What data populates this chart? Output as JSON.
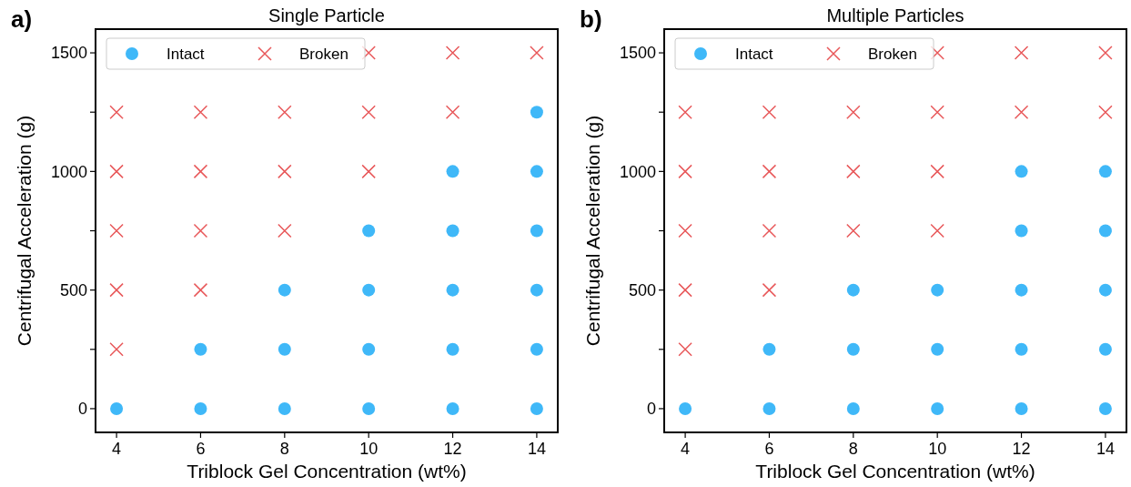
{
  "chart_data": [
    {
      "type": "scatter",
      "title": "Single Particle",
      "xlabel": "Triblock Gel Concentration (wt%)",
      "ylabel": "Centrifugal Acceleration (g)",
      "annotations": [
        "a)"
      ],
      "xlim": [
        3.5,
        14.5
      ],
      "xticks": [
        4,
        6,
        8,
        10,
        12,
        14
      ],
      "ylim": [
        -100,
        1600
      ],
      "yticks": [
        0,
        {
          "value": 250,
          "label": null
        },
        500,
        {
          "value": 750,
          "label": null
        },
        1000,
        {
          "value": 1250,
          "label": null
        },
        1500
      ],
      "legend": "top left",
      "grid": false,
      "series": [
        {
          "name": "Intact",
          "color": "#3fb8f8",
          "marker": "circle",
          "x": [
            4,
            6,
            6,
            8,
            8,
            8,
            10,
            10,
            10,
            10,
            12,
            12,
            12,
            12,
            12,
            14,
            14,
            14,
            14,
            14,
            14
          ],
          "values": [
            0,
            0,
            250,
            0,
            250,
            500,
            0,
            250,
            500,
            750,
            0,
            250,
            500,
            750,
            1000,
            0,
            250,
            500,
            750,
            1000,
            1250
          ]
        },
        {
          "name": "Broken",
          "color": "#e8585a",
          "marker": "cross",
          "x": [
            4,
            4,
            4,
            4,
            4,
            6,
            6,
            6,
            6,
            8,
            8,
            8,
            10,
            10,
            10,
            12,
            12,
            14
          ],
          "values": [
            250,
            500,
            750,
            1000,
            1250,
            500,
            750,
            1000,
            1250,
            750,
            1000,
            1250,
            1000,
            1250,
            1500,
            1250,
            1500,
            1500
          ]
        }
      ]
    },
    {
      "type": "scatter",
      "title": "Multiple Particles",
      "xlabel": "Triblock Gel Concentration (wt%)",
      "ylabel": "Centrifugal Acceleration (g)",
      "annotations": [
        "b)"
      ],
      "xlim": [
        3.5,
        14.5
      ],
      "xticks": [
        4,
        6,
        8,
        10,
        12,
        14
      ],
      "ylim": [
        -100,
        1600
      ],
      "yticks": [
        0,
        {
          "value": 250,
          "label": null
        },
        500,
        {
          "value": 750,
          "label": null
        },
        1000,
        {
          "value": 1250,
          "label": null
        },
        1500
      ],
      "legend": "top left",
      "grid": false,
      "series": [
        {
          "name": "Intact",
          "color": "#3fb8f8",
          "marker": "circle",
          "x": [
            4,
            6,
            6,
            8,
            8,
            8,
            10,
            10,
            10,
            12,
            12,
            12,
            12,
            12,
            14,
            14,
            14,
            14,
            14
          ],
          "values": [
            0,
            0,
            250,
            0,
            250,
            500,
            0,
            250,
            500,
            0,
            250,
            500,
            750,
            1000,
            0,
            250,
            500,
            750,
            1000
          ]
        },
        {
          "name": "Broken",
          "color": "#e8585a",
          "marker": "cross",
          "x": [
            4,
            4,
            4,
            4,
            4,
            6,
            6,
            6,
            6,
            8,
            8,
            8,
            10,
            10,
            10,
            10,
            12,
            12,
            14,
            14
          ],
          "values": [
            250,
            500,
            750,
            1000,
            1250,
            500,
            750,
            1000,
            1250,
            750,
            1000,
            1250,
            750,
            1000,
            1250,
            1500,
            1250,
            1500,
            1250,
            1500
          ]
        }
      ]
    }
  ]
}
